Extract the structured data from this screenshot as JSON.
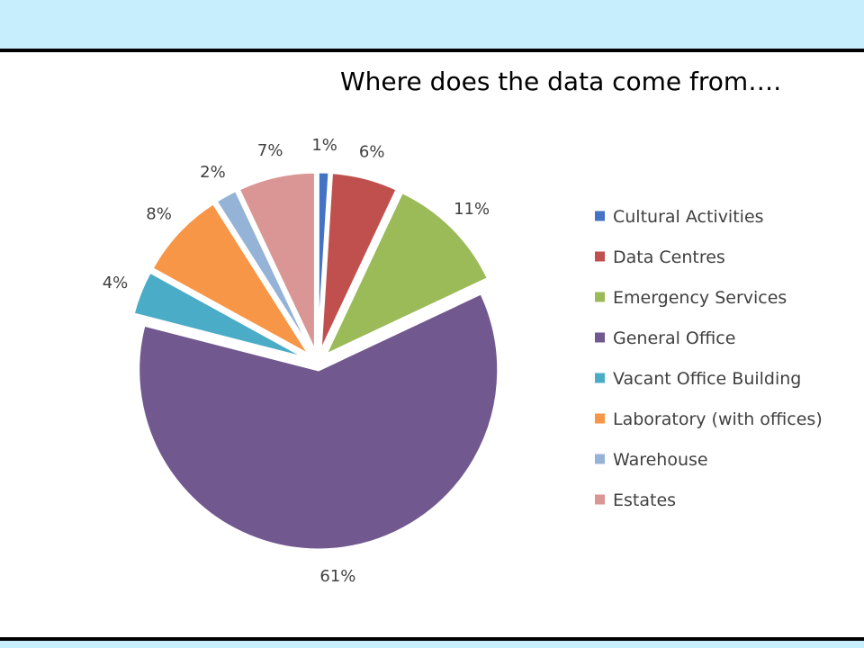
{
  "slide": {
    "title": "Where does the data come from…."
  },
  "chart_data": {
    "type": "pie",
    "title": "",
    "exploded": true,
    "legend_position": "right",
    "slices": [
      {
        "label": "Cultural Activities",
        "value": 1,
        "display": "1%",
        "color": "#4472c4"
      },
      {
        "label": "Data Centres",
        "value": 6,
        "display": "6%",
        "color": "#c0504d"
      },
      {
        "label": "Emergency Services",
        "value": 11,
        "display": "11%",
        "color": "#9bbb59"
      },
      {
        "label": "General Office",
        "value": 61,
        "display": "61%",
        "color": "#71588f"
      },
      {
        "label": "Vacant Office Building",
        "value": 4,
        "display": "4%",
        "color": "#4aacc6"
      },
      {
        "label": "Laboratory (with offices)",
        "value": 8,
        "display": "8%",
        "color": "#f79646"
      },
      {
        "label": "Warehouse",
        "value": 2,
        "display": "2%",
        "color": "#95b3d7"
      },
      {
        "label": "Estates",
        "value": 7,
        "display": "7%",
        "color": "#d99694"
      }
    ]
  }
}
